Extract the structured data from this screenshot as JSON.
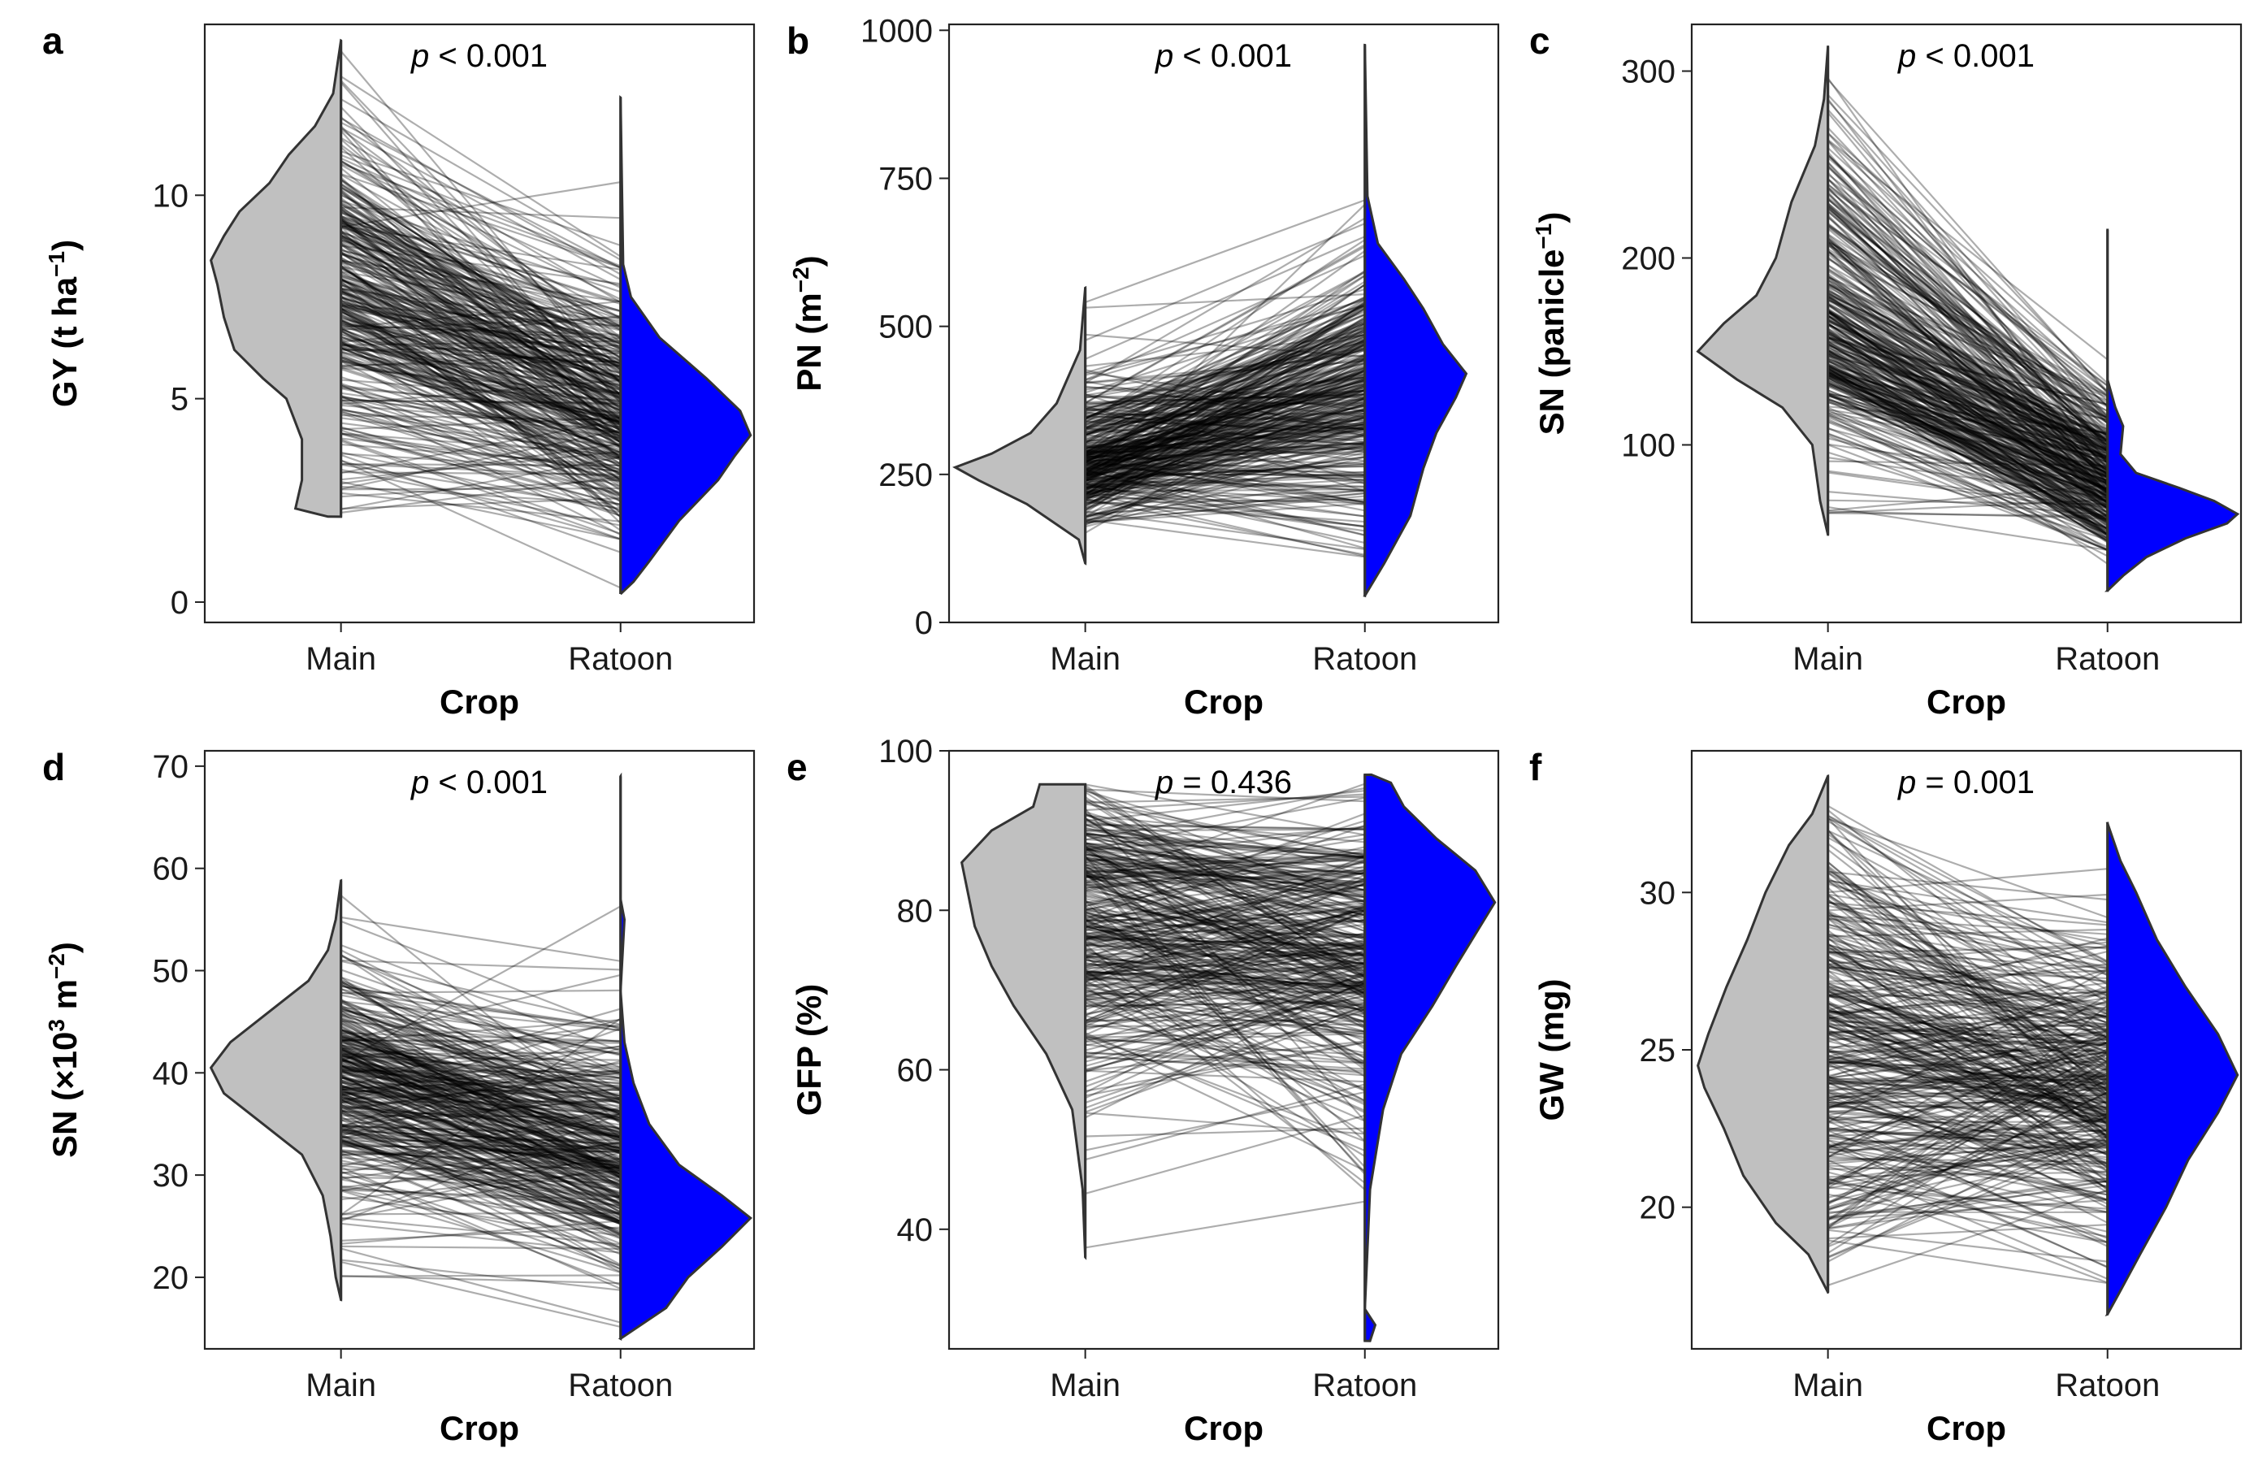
{
  "figure": {
    "x_axis_title": "Crop",
    "categories": [
      "Main",
      "Ratoon"
    ],
    "colors": {
      "main_violin": "#c0c0c0",
      "ratoon_violin": "#0000ff",
      "paired_lines": "#000000",
      "outline": "#333333"
    }
  },
  "chart_data": [
    {
      "type": "split_violin_paired",
      "letter": "a",
      "ylabel": {
        "main": "GY (t ha",
        "sup": "−1",
        "tail": ")"
      },
      "p_label": {
        "p": "p",
        "rest": " < 0.001"
      },
      "ylim": [
        -0.5,
        14.2
      ],
      "ticks": [
        0,
        5,
        10
      ],
      "categories": [
        "Main",
        "Ratoon"
      ],
      "main": {
        "min": 2.1,
        "max": 13.8,
        "density": [
          [
            2.1,
            0.1
          ],
          [
            2.3,
            0.35
          ],
          [
            3,
            0.3
          ],
          [
            4,
            0.3
          ],
          [
            5,
            0.42
          ],
          [
            5.5,
            0.6
          ],
          [
            6.2,
            0.82
          ],
          [
            7,
            0.9
          ],
          [
            7.8,
            0.95
          ],
          [
            8.4,
            1.0
          ],
          [
            9,
            0.9
          ],
          [
            9.6,
            0.78
          ],
          [
            10.3,
            0.55
          ],
          [
            11,
            0.4
          ],
          [
            11.7,
            0.2
          ],
          [
            12.5,
            0.06
          ],
          [
            13.8,
            0
          ]
        ]
      },
      "ratoon": {
        "min": 0.2,
        "max": 12.4,
        "density": [
          [
            0.2,
            0
          ],
          [
            0.5,
            0.1
          ],
          [
            1,
            0.22
          ],
          [
            2,
            0.45
          ],
          [
            3,
            0.75
          ],
          [
            3.6,
            0.88
          ],
          [
            4.1,
            1.0
          ],
          [
            4.7,
            0.92
          ],
          [
            5.5,
            0.66
          ],
          [
            6.5,
            0.3
          ],
          [
            7.5,
            0.08
          ],
          [
            8.3,
            0.02
          ],
          [
            12.4,
            0
          ]
        ]
      }
    },
    {
      "type": "split_violin_paired",
      "letter": "b",
      "ylabel": {
        "main": "PN (m",
        "sup": "−2",
        "tail": ")"
      },
      "p_label": {
        "p": "p",
        "rest": " < 0.001"
      },
      "ylim": [
        0,
        1010
      ],
      "ticks": [
        0,
        250,
        500,
        750,
        1000
      ],
      "categories": [
        "Main",
        "Ratoon"
      ],
      "main": {
        "min": 100,
        "max": 565,
        "density": [
          [
            100,
            0
          ],
          [
            140,
            0.05
          ],
          [
            200,
            0.45
          ],
          [
            240,
            0.82
          ],
          [
            262,
            1.0
          ],
          [
            285,
            0.72
          ],
          [
            320,
            0.42
          ],
          [
            370,
            0.22
          ],
          [
            420,
            0.12
          ],
          [
            460,
            0.04
          ],
          [
            565,
            0
          ]
        ]
      },
      "ratoon": {
        "min": 45,
        "max": 975,
        "density": [
          [
            45,
            0
          ],
          [
            100,
            0.15
          ],
          [
            180,
            0.35
          ],
          [
            260,
            0.45
          ],
          [
            320,
            0.55
          ],
          [
            380,
            0.7
          ],
          [
            420,
            0.78
          ],
          [
            470,
            0.6
          ],
          [
            530,
            0.45
          ],
          [
            580,
            0.3
          ],
          [
            640,
            0.1
          ],
          [
            720,
            0.02
          ],
          [
            975,
            0
          ]
        ]
      }
    },
    {
      "type": "split_violin_paired",
      "letter": "c",
      "ylabel": {
        "main": "SN (panicle",
        "sup": "−1",
        "tail": ")"
      },
      "p_label": {
        "p": "p",
        "rest": " < 0.001"
      },
      "ylim": [
        5,
        325
      ],
      "ticks": [
        100,
        200,
        300
      ],
      "categories": [
        "Main",
        "Ratoon"
      ],
      "main": {
        "min": 52,
        "max": 313,
        "density": [
          [
            52,
            0
          ],
          [
            70,
            0.06
          ],
          [
            100,
            0.12
          ],
          [
            120,
            0.35
          ],
          [
            135,
            0.7
          ],
          [
            150,
            1.0
          ],
          [
            165,
            0.8
          ],
          [
            180,
            0.55
          ],
          [
            200,
            0.4
          ],
          [
            230,
            0.28
          ],
          [
            260,
            0.1
          ],
          [
            285,
            0.03
          ],
          [
            313,
            0
          ]
        ]
      },
      "ratoon": {
        "min": 22,
        "max": 215,
        "density": [
          [
            22,
            0
          ],
          [
            30,
            0.12
          ],
          [
            40,
            0.3
          ],
          [
            50,
            0.6
          ],
          [
            58,
            0.92
          ],
          [
            63,
            1.0
          ],
          [
            70,
            0.82
          ],
          [
            77,
            0.55
          ],
          [
            85,
            0.22
          ],
          [
            95,
            0.1
          ],
          [
            110,
            0.12
          ],
          [
            120,
            0.06
          ],
          [
            135,
            0
          ],
          [
            215,
            0
          ]
        ]
      }
    },
    {
      "type": "split_violin_paired",
      "letter": "d",
      "ylabel": {
        "main": "SN (×10",
        "sup": "3",
        "mid": " m",
        "sup2": "−2",
        "tail": ")"
      },
      "p_label": {
        "p": "p",
        "rest": " < 0.001"
      },
      "ylim": [
        13,
        71.5
      ],
      "ticks": [
        20,
        30,
        40,
        50,
        60,
        70
      ],
      "categories": [
        "Main",
        "Ratoon"
      ],
      "main": {
        "min": 17.8,
        "max": 58.8,
        "density": [
          [
            17.8,
            0
          ],
          [
            20,
            0.04
          ],
          [
            24,
            0.08
          ],
          [
            28,
            0.14
          ],
          [
            32,
            0.3
          ],
          [
            35,
            0.6
          ],
          [
            38,
            0.9
          ],
          [
            40.5,
            1.0
          ],
          [
            43,
            0.85
          ],
          [
            46,
            0.55
          ],
          [
            49,
            0.25
          ],
          [
            52,
            0.1
          ],
          [
            55,
            0.04
          ],
          [
            58.8,
            0
          ]
        ]
      },
      "ratoon": {
        "min": 14,
        "max": 69,
        "density": [
          [
            14,
            0
          ],
          [
            17,
            0.35
          ],
          [
            20,
            0.52
          ],
          [
            23,
            0.78
          ],
          [
            25.8,
            1.0
          ],
          [
            28,
            0.78
          ],
          [
            31,
            0.45
          ],
          [
            35,
            0.22
          ],
          [
            39,
            0.1
          ],
          [
            43,
            0.03
          ],
          [
            48,
            0
          ],
          [
            55,
            0.03
          ],
          [
            57,
            0
          ],
          [
            69,
            0
          ]
        ]
      }
    },
    {
      "type": "split_violin_paired",
      "letter": "e",
      "ylabel": {
        "main": "GFP (%)"
      },
      "p_label": {
        "p": "p",
        "rest": " = 0.436"
      },
      "ylim": [
        25,
        100
      ],
      "ticks": [
        40,
        60,
        80,
        100
      ],
      "categories": [
        "Main",
        "Ratoon"
      ],
      "main": {
        "min": 36.5,
        "max": 95.8,
        "density": [
          [
            36.5,
            0
          ],
          [
            45,
            0.02
          ],
          [
            55,
            0.1
          ],
          [
            62,
            0.3
          ],
          [
            68,
            0.55
          ],
          [
            73,
            0.72
          ],
          [
            78,
            0.85
          ],
          [
            82,
            0.9
          ],
          [
            86,
            0.95
          ],
          [
            90,
            0.72
          ],
          [
            93,
            0.4
          ],
          [
            95.8,
            0.35
          ]
        ]
      },
      "ratoon": {
        "min": 26,
        "max": 97,
        "density": [
          [
            26,
            0.04
          ],
          [
            28,
            0.08
          ],
          [
            30,
            0
          ],
          [
            45,
            0.04
          ],
          [
            55,
            0.14
          ],
          [
            62,
            0.28
          ],
          [
            68,
            0.52
          ],
          [
            73,
            0.7
          ],
          [
            77,
            0.85
          ],
          [
            81,
            1.0
          ],
          [
            85,
            0.85
          ],
          [
            89,
            0.55
          ],
          [
            93,
            0.3
          ],
          [
            96,
            0.2
          ],
          [
            97,
            0.05
          ]
        ]
      }
    },
    {
      "type": "split_violin_paired",
      "letter": "f",
      "ylabel": {
        "main": "GW (mg)"
      },
      "p_label": {
        "p": "p",
        "rest": " = 0.001"
      },
      "ylim": [
        15.5,
        34.5
      ],
      "ticks": [
        20,
        25,
        30
      ],
      "categories": [
        "Main",
        "Ratoon"
      ],
      "main": {
        "min": 17.3,
        "max": 33.7,
        "density": [
          [
            17.3,
            0
          ],
          [
            18.5,
            0.15
          ],
          [
            19.5,
            0.4
          ],
          [
            21,
            0.65
          ],
          [
            22.5,
            0.8
          ],
          [
            23.8,
            0.95
          ],
          [
            24.5,
            1.0
          ],
          [
            25.5,
            0.92
          ],
          [
            27,
            0.78
          ],
          [
            28.5,
            0.62
          ],
          [
            30,
            0.48
          ],
          [
            31.5,
            0.3
          ],
          [
            32.5,
            0.12
          ],
          [
            33.7,
            0
          ]
        ]
      },
      "ratoon": {
        "min": 16.6,
        "max": 32.2,
        "density": [
          [
            16.6,
            0
          ],
          [
            17.2,
            0.08
          ],
          [
            18.5,
            0.25
          ],
          [
            20,
            0.45
          ],
          [
            21.5,
            0.62
          ],
          [
            23,
            0.85
          ],
          [
            24.2,
            1.0
          ],
          [
            25.5,
            0.85
          ],
          [
            27,
            0.6
          ],
          [
            28.5,
            0.38
          ],
          [
            30,
            0.22
          ],
          [
            31,
            0.1
          ],
          [
            32.2,
            0
          ]
        ]
      }
    }
  ]
}
